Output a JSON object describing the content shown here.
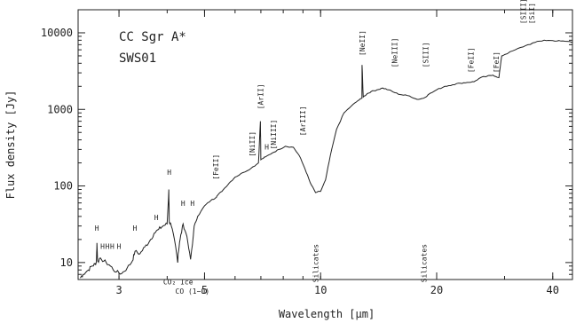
{
  "chart_data": {
    "type": "line",
    "title": "CC Sgr A*",
    "subtitle": "SWS01",
    "xlabel": "Wavelength [μm]",
    "ylabel": "Flux density [Jy]",
    "x_scale": "log",
    "y_scale": "log",
    "xlim": [
      2.35,
      45
    ],
    "ylim": [
      6,
      20000
    ],
    "x_ticks": [
      {
        "v": 3,
        "label": "3"
      },
      {
        "v": 5,
        "label": "5"
      },
      {
        "v": 10,
        "label": "10"
      },
      {
        "v": 20,
        "label": "20"
      },
      {
        "v": 40,
        "label": "40"
      }
    ],
    "y_ticks": [
      {
        "v": 10,
        "label": "10"
      },
      {
        "v": 100,
        "label": "100"
      },
      {
        "v": 1000,
        "label": "1000"
      },
      {
        "v": 10000,
        "label": "10000"
      }
    ],
    "series": [
      {
        "x": [
          2.38,
          2.42,
          2.5,
          2.55,
          2.6,
          2.62,
          2.63,
          2.64,
          2.7,
          2.78,
          2.85,
          2.95,
          3.05,
          3.15,
          3.25,
          3.3,
          3.4,
          3.5,
          3.6,
          3.7,
          3.8,
          3.9,
          4.0,
          4.04,
          4.05,
          4.1,
          4.2,
          4.26,
          4.27,
          4.32,
          4.4,
          4.5,
          4.6,
          4.65,
          4.7,
          4.8,
          5.0,
          5.2,
          5.34,
          5.4,
          5.6,
          5.8,
          6.0,
          6.3,
          6.6,
          6.9,
          6.98,
          7.0,
          7.2,
          7.5,
          7.8,
          8.1,
          8.5,
          8.8,
          9.1,
          9.4,
          9.7,
          10.0,
          10.3,
          10.6,
          11.0,
          11.5,
          12.0,
          12.5,
          12.8,
          12.81,
          12.9,
          13.2,
          13.5,
          14.0,
          14.5,
          15.0,
          15.6,
          16.2,
          17.0,
          17.8,
          18.5,
          19.0,
          20.0,
          21.0,
          22.0,
          23.0,
          24.0,
          25.0,
          26.0,
          27.0,
          28.0,
          29.0,
          29.5,
          30.0,
          32.0,
          34.0,
          36.0,
          38.0,
          40.0,
          42.0,
          44.0,
          45.0
        ],
        "y": [
          6.3,
          7.0,
          8.0,
          9.0,
          9.5,
          10.0,
          18.0,
          10.5,
          11.0,
          10.0,
          9.0,
          7.5,
          7.2,
          8.5,
          10.5,
          14.0,
          13.0,
          16.0,
          19.0,
          24.0,
          27.0,
          30.0,
          32.0,
          90.0,
          34.0,
          30.0,
          17.0,
          10.0,
          13.0,
          20.0,
          32.0,
          22.0,
          11.0,
          17.0,
          30.0,
          40.0,
          55.0,
          65.0,
          70.0,
          75.0,
          90.0,
          110.0,
          130.0,
          150.0,
          170.0,
          200.0,
          700.0,
          220.0,
          240.0,
          270.0,
          300.0,
          330.0,
          320.0,
          250.0,
          170.0,
          110.0,
          82.0,
          85.0,
          120.0,
          250.0,
          550.0,
          900.0,
          1100.0,
          1300.0,
          1400.0,
          3800.0,
          1450.0,
          1600.0,
          1700.0,
          1800.0,
          1900.0,
          1800.0,
          1650.0,
          1550.0,
          1500.0,
          1350.0,
          1400.0,
          1550.0,
          1800.0,
          2000.0,
          2100.0,
          2200.0,
          2250.0,
          2300.0,
          2600.0,
          2700.0,
          2800.0,
          2600.0,
          5000.0,
          5200.0,
          6000.0,
          6800.0,
          7500.0,
          8000.0,
          7900.0,
          7800.0,
          7700.0,
          7600.0
        ]
      }
    ],
    "annotations": [
      {
        "text": "H",
        "x": 2.63,
        "y": 26
      },
      {
        "text": "H",
        "x": 2.72,
        "y": 15
      },
      {
        "text": "H",
        "x": 2.8,
        "y": 15
      },
      {
        "text": "H",
        "x": 2.88,
        "y": 15
      },
      {
        "text": "H",
        "x": 3.0,
        "y": 15
      },
      {
        "text": "H",
        "x": 3.3,
        "y": 26
      },
      {
        "text": "H",
        "x": 3.75,
        "y": 36
      },
      {
        "text": "H",
        "x": 4.05,
        "y": 140
      },
      {
        "text": "H",
        "x": 4.4,
        "y": 55
      },
      {
        "text": "H",
        "x": 4.65,
        "y": 55
      },
      {
        "text": "[FeII]",
        "x": 5.34,
        "y": 120,
        "vertical": true
      },
      {
        "text": "[NiII]",
        "x": 6.64,
        "y": 240,
        "vertical": true
      },
      {
        "text": "[ArII]",
        "x": 6.98,
        "y": 1000,
        "vertical": true
      },
      {
        "text": "H",
        "x": 7.25,
        "y": 300
      },
      {
        "text": "[NiIII]",
        "x": 7.55,
        "y": 300,
        "vertical": true
      },
      {
        "text": "[ArIII]",
        "x": 8.99,
        "y": 450,
        "vertical": true
      },
      {
        "text": "[NeII]",
        "x": 12.81,
        "y": 5000,
        "vertical": true
      },
      {
        "text": "[NeIII]",
        "x": 15.55,
        "y": 3500,
        "vertical": true
      },
      {
        "text": "[SIII]",
        "x": 18.71,
        "y": 3500,
        "vertical": true
      },
      {
        "text": "[FeII]",
        "x": 24.5,
        "y": 3000,
        "vertical": true
      },
      {
        "text": "[FeI]",
        "x": 28.5,
        "y": 3000,
        "vertical": true
      },
      {
        "text": "[SIII]",
        "x": 33.5,
        "y": 13000,
        "vertical": true
      },
      {
        "text": "[SiI]",
        "x": 35.3,
        "y": 13000,
        "vertical": true
      },
      {
        "text": "CO₂ Ice",
        "x": 4.27,
        "y": 5.2
      },
      {
        "text": "CO (1−0)",
        "x": 4.65,
        "y": 3.9
      },
      {
        "text": "Silicates",
        "x": 9.7,
        "y": 5.5,
        "vertical": true
      },
      {
        "text": "Silicates",
        "x": 18.5,
        "y": 5.5,
        "vertical": true
      }
    ]
  }
}
